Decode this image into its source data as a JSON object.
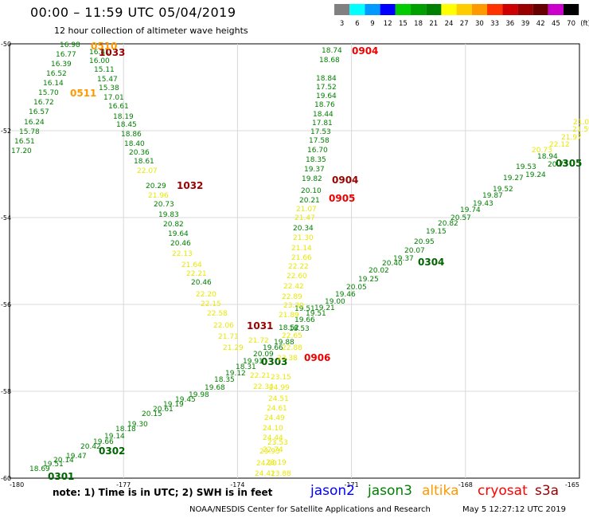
{
  "header": {
    "title": "00:00 – 11:59 UTC 05/04/2019",
    "subtitle": "12 hour collection of altimeter wave heights"
  },
  "colorbar": {
    "labels": [
      "3",
      "6",
      "9",
      "12",
      "15",
      "18",
      "21",
      "24",
      "27",
      "30",
      "33",
      "36",
      "39",
      "42",
      "45",
      "70"
    ],
    "unit": "(ft)",
    "colors": [
      "#808080",
      "#00ffff",
      "#0099ff",
      "#0000ff",
      "#00cc00",
      "#00a000",
      "#008000",
      "#ffff00",
      "#ffcc00",
      "#ff9900",
      "#ff3300",
      "#cc0000",
      "#990000",
      "#660000",
      "#cc00cc",
      "#000000"
    ]
  },
  "map": {
    "lat_labels": [
      "-50",
      "-52",
      "-54",
      "-56",
      "-58",
      "-60"
    ],
    "lon_labels": [
      "-180",
      "-177",
      "-174",
      "-171",
      "-168",
      "-165"
    ]
  },
  "chart_data": {
    "type": "scatter",
    "title": "00:00 – 11:59 UTC 05/04/2019",
    "subtitle": "12 hour collection of altimeter wave heights",
    "xlim": [
      -180,
      -165
    ],
    "ylim": [
      -60,
      -50
    ],
    "x_ticks": [
      -180,
      -177,
      -174,
      -171,
      -168,
      -165
    ],
    "y_ticks": [
      -50,
      -52,
      -54,
      -56,
      -58,
      -60
    ],
    "grid": true,
    "units": "ft",
    "series": [
      {
        "name": "jason3",
        "tracks": [
          {
            "values": [
              "16.98",
              "16.41",
              "16.77",
              "16.00",
              "16.39",
              "15.11",
              "16.52",
              "15.47",
              "16.14",
              "15.38",
              "15.70",
              "17.01",
              "16.72",
              "16.61",
              "16.57",
              "18.19",
              "16.24",
              "18.45",
              "15.78",
              "18.86",
              "16.51",
              "18.40",
              "17.20",
              "20.36",
              "18.61",
              "20.29",
              "20.73",
              "19.83",
              "20.82",
              "19.64",
              "20.46",
              "20.46"
            ],
            "time_labels": [
              "1033",
              "1032"
            ]
          },
          {
            "values": [
              "18.74",
              "18.68",
              "18.84",
              "17.52",
              "19.64",
              "18.76",
              "18.44",
              "17.81",
              "17.53",
              "17.58",
              "16.70",
              "18.35",
              "19.37",
              "19.82",
              "20.10",
              "20.21",
              "20.34"
            ],
            "time_labels": [
              "0904",
              "0904",
              "0905"
            ]
          },
          {
            "values": [
              "18.53",
              "19.51",
              "19.91",
              "18.52",
              "19.66",
              "19.88",
              "20.09",
              "18.31",
              "19.12",
              "18.35",
              "19.68",
              "19.98",
              "19.45",
              "19.19",
              "20.61",
              "20.15",
              "19.30",
              "18.18",
              "19.14",
              "19.66",
              "20.42",
              "19.47",
              "20.14",
              "19.51",
              "18.69"
            ],
            "time_labels": [
              "1031",
              "0303",
              "0302",
              "0301"
            ]
          },
          {
            "values": [
              "18.94",
              "20.73",
              "19.53",
              "19.24",
              "19.27",
              "19.52",
              "19.87",
              "19.43",
              "19.74",
              "20.57",
              "20.82",
              "19.15",
              "20.95",
              "20.07",
              "19.37",
              "20.40",
              "20.02",
              "19.25",
              "20.05",
              "19.46",
              "19.00",
              "19.21",
              "19.51",
              "19.66",
              "17.90",
              "18.52"
            ],
            "time_labels": [
              "0305",
              "0304"
            ]
          }
        ]
      },
      {
        "name": "altika",
        "tracks": [
          {
            "values": [
              "22.07",
              "21.96",
              "22.13",
              "21.64",
              "22.21",
              "22.20",
              "22.15",
              "22.58",
              "22.06",
              "21.71",
              "21.29"
            ],
            "time_labels": [
              "0510",
              "0511"
            ]
          },
          {
            "values": [
              "21.07",
              "21.47",
              "21.30",
              "21.14",
              "21.66",
              "22.22",
              "22.60",
              "22.42",
              "22.89",
              "23.30",
              "21.89",
              "22.65",
              "22.88",
              "23.38",
              "23.15",
              "24.99",
              "24.51",
              "24.61",
              "24.49",
              "24.10",
              "24.44",
              "23.53",
              "23.93",
              "22.74",
              "24.90",
              "23.19",
              "24.41",
              "23.88",
              "22.21",
              "22.34",
              "21.72"
            ],
            "time_labels": [
              "0906"
            ]
          },
          {
            "values": [
              "22.12",
              "21.97",
              "21.59",
              "21.02",
              "20.73"
            ],
            "time_labels": []
          }
        ]
      }
    ]
  },
  "legend": {
    "note": "note: 1) Time is in UTC; 2) SWH is in feet",
    "missions": [
      {
        "name": "jason2",
        "color": "#0000ff"
      },
      {
        "name": "jason3",
        "color": "#008000"
      },
      {
        "name": "altika",
        "color": "#ff9900"
      },
      {
        "name": "cryosat",
        "color": "#ff0000"
      },
      {
        "name": "s3a",
        "color": "#990000"
      }
    ]
  },
  "footer": {
    "credit": "NOAA/NESDIS Center for Satellite Applications and Research",
    "timestamp": "May  5 12:27:12 UTC 2019"
  },
  "colors": {
    "jason3": "#008000",
    "altika": "#e8e800",
    "altika_label": "#ff9900",
    "time_red": "#ee0000",
    "time_dark": "#990000",
    "time_green": "#006400",
    "grid": "#d8d8d8"
  }
}
